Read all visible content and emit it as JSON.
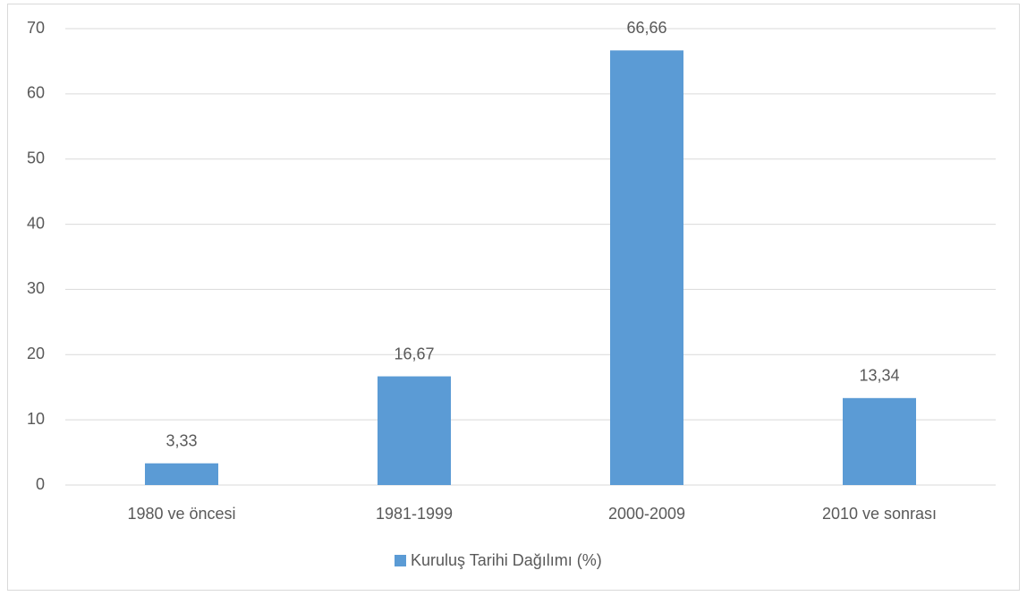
{
  "chart_data": {
    "type": "bar",
    "categories": [
      "1980 ve öncesi",
      "1981-1999",
      "2000-2009",
      "2010 ve sonrası"
    ],
    "series": [
      {
        "name": "Kuruluş Tarihi Dağılımı (%)",
        "color": "#5b9bd5",
        "values": [
          3.33,
          16.67,
          66.66,
          13.34
        ],
        "value_labels": [
          "3,33",
          "16,67",
          "66,66",
          "13,34"
        ]
      }
    ],
    "ylim": [
      0,
      70
    ],
    "yticks": [
      0,
      10,
      20,
      30,
      40,
      50,
      60,
      70
    ],
    "grid": true,
    "legend": "bottom"
  }
}
